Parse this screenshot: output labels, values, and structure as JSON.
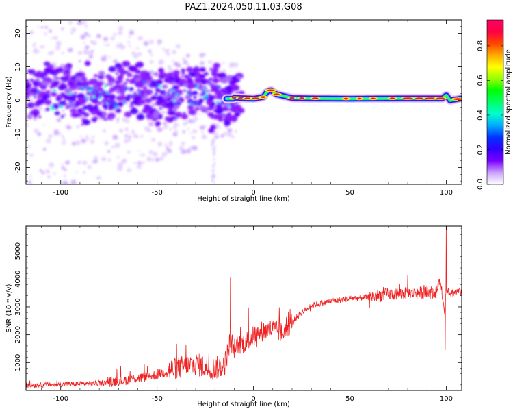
{
  "title": "PAZ1.2024.050.11.03.G08",
  "chart_data": [
    {
      "type": "heatmap",
      "xlabel": "Height of straight line (km)",
      "ylabel": "Frequency (Hz)",
      "xlim": [
        -118,
        108
      ],
      "ylim": [
        -25,
        24
      ],
      "xticks": [
        -100,
        -50,
        0,
        50,
        100
      ],
      "yticks": [
        -20,
        -10,
        0,
        10,
        20
      ],
      "colorbar": {
        "label": "Normalized spectral amplitude",
        "range": [
          0.0,
          0.95
        ],
        "ticks": [
          0.0,
          0.2,
          0.4,
          0.6,
          0.8
        ],
        "tick_labels": [
          "0.0",
          "0.2",
          "0.4",
          "0.6",
          "0.8"
        ],
        "colormap": [
          "#ffffff",
          "#c9a0ff",
          "#7a00ff",
          "#3300ff",
          "#0033ff",
          "#00aaff",
          "#00ffcc",
          "#00ff66",
          "#00ff00",
          "#99ff00",
          "#ffff00",
          "#ffaa00",
          "#ff4400",
          "#ff0044",
          "#ff0066"
        ]
      },
      "ridge": [
        {
          "x": -10,
          "freq": 0.8
        },
        {
          "x": 0,
          "freq": 0.5
        },
        {
          "x": 5,
          "freq": 1.0
        },
        {
          "x": 7,
          "freq": 2.5
        },
        {
          "x": 9,
          "freq": 3.0
        },
        {
          "x": 12,
          "freq": 1.8
        },
        {
          "x": 20,
          "freq": 0.7
        },
        {
          "x": 30,
          "freq": 0.6
        },
        {
          "x": 50,
          "freq": 0.5
        },
        {
          "x": 75,
          "freq": 0.6
        },
        {
          "x": 98,
          "freq": 0.6
        },
        {
          "x": 100,
          "freq": 1.5
        },
        {
          "x": 102,
          "freq": 0.0
        },
        {
          "x": 108,
          "freq": 0.6
        }
      ]
    },
    {
      "type": "line",
      "xlabel": "Height of straight line (km)",
      "ylabel": "SNR (10 * v/v)",
      "xlim": [
        -118,
        108
      ],
      "ylim": [
        0,
        5900
      ],
      "xticks": [
        -100,
        -50,
        0,
        50,
        100
      ],
      "yticks": [
        1000,
        2000,
        3000,
        4000,
        5000
      ],
      "color": "#ee2222",
      "trend": {
        "x": [
          -118,
          -100,
          -80,
          -65,
          -50,
          -40,
          -30,
          -22,
          -15,
          -12,
          -10,
          -5,
          0,
          5,
          10,
          15,
          20,
          25,
          30,
          40,
          50,
          60,
          70,
          80,
          90,
          95,
          97,
          99,
          100,
          102,
          108
        ],
        "y": [
          180,
          220,
          260,
          380,
          560,
          800,
          950,
          760,
          900,
          1800,
          1500,
          1700,
          1950,
          2150,
          2200,
          2050,
          2450,
          2800,
          3050,
          3200,
          3300,
          3350,
          3450,
          3500,
          3500,
          3550,
          4000,
          2800,
          3700,
          3500,
          3550
        ]
      },
      "spikes": [
        {
          "x": -12,
          "y": 4050
        },
        {
          "x": -35,
          "y": 1650
        },
        {
          "x": 100,
          "y": 5900
        },
        {
          "x": 99.5,
          "y": 1450
        },
        {
          "x": 80,
          "y": 4150
        }
      ]
    }
  ]
}
